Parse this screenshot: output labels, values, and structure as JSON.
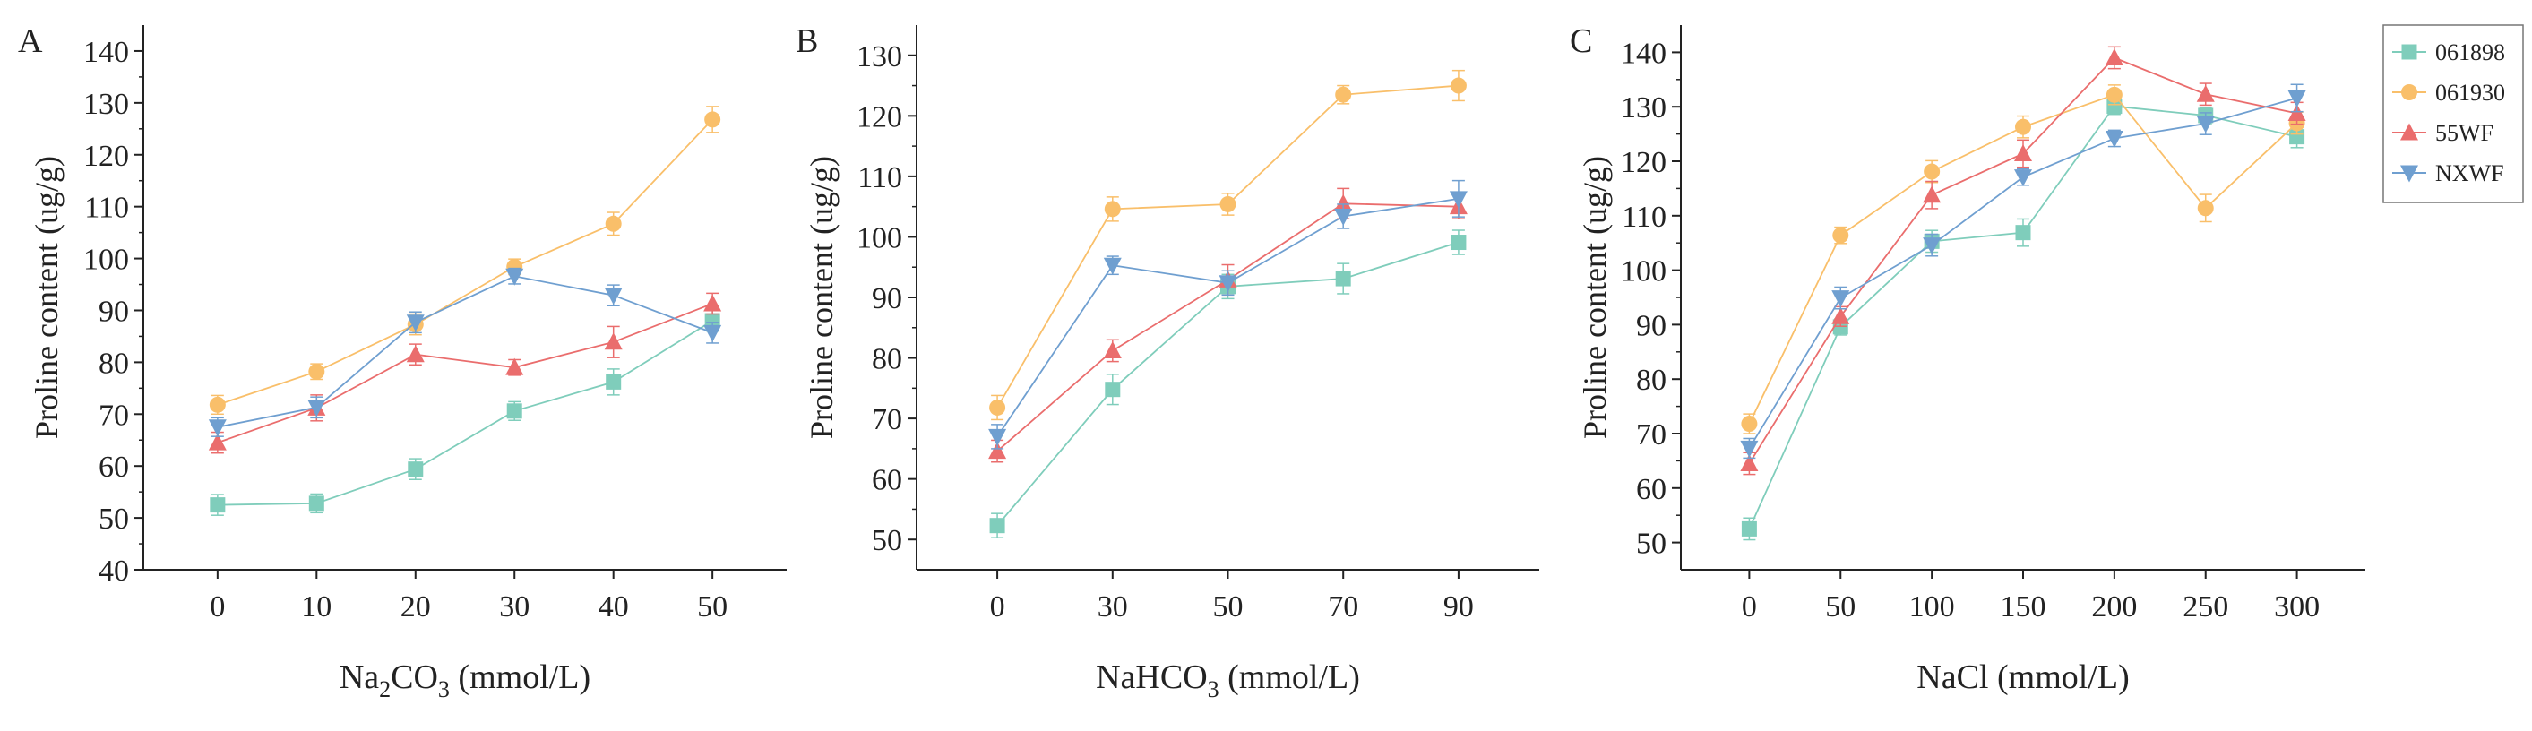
{
  "legend": {
    "placement": "top-right",
    "entries": [
      {
        "name": "061898",
        "color": "#7fcdbb",
        "marker": "square"
      },
      {
        "name": "061930",
        "color": "#f9bf6a",
        "marker": "circle"
      },
      {
        "name": "55WF",
        "color": "#ea6d6d",
        "marker": "triangle-up"
      },
      {
        "name": "NXWF",
        "color": "#6f9fd0",
        "marker": "triangle-down"
      }
    ]
  },
  "chart_data": [
    {
      "type": "line",
      "panel_label": "A",
      "xlabel_main": "Na",
      "xlabel_sub1": "2",
      "xlabel_mid": "CO",
      "xlabel_sub2": "3",
      "xlabel_rest": " (mmol/L)",
      "ylabel": "Proline content (ug/g)",
      "x": [
        0,
        10,
        20,
        30,
        40,
        50
      ],
      "xticks": [
        "0",
        "10",
        "20",
        "30",
        "40",
        "50"
      ],
      "xlim": [
        -7.5,
        57.5
      ],
      "ylim": [
        40,
        145
      ],
      "yticks": [
        40,
        50,
        60,
        70,
        80,
        90,
        100,
        110,
        120,
        130,
        140
      ],
      "grid": false,
      "series": [
        {
          "name": "061898",
          "values": [
            52.5,
            52.8,
            59.4,
            70.6,
            76.2,
            88.0
          ],
          "errors": [
            2.0,
            1.8,
            2.0,
            1.8,
            2.5,
            2.0
          ]
        },
        {
          "name": "061930",
          "values": [
            71.8,
            78.2,
            87.3,
            98.4,
            106.7,
            126.8
          ],
          "errors": [
            1.8,
            1.5,
            2.0,
            1.5,
            2.2,
            2.5
          ]
        },
        {
          "name": "55WF",
          "values": [
            64.5,
            71.2,
            81.5,
            79.0,
            83.9,
            91.3
          ],
          "errors": [
            2.0,
            2.5,
            2.0,
            1.5,
            3.0,
            2.0
          ]
        },
        {
          "name": "NXWF",
          "values": [
            67.5,
            71.3,
            87.7,
            96.6,
            92.9,
            85.7
          ],
          "errors": [
            1.8,
            2.0,
            2.0,
            1.5,
            2.0,
            2.0
          ]
        }
      ]
    },
    {
      "type": "line",
      "panel_label": "B",
      "xlabel_main": "NaHCO",
      "xlabel_sub1": "3",
      "xlabel_mid": "",
      "xlabel_sub2": "",
      "xlabel_rest": " (mmol/L)",
      "ylabel": "Proline content (ug/g)",
      "x": [
        0,
        1,
        2,
        3,
        4
      ],
      "xticks": [
        "0",
        "30",
        "50",
        "70",
        "90"
      ],
      "xlim": [
        -0.7,
        4.7
      ],
      "ylim": [
        45,
        135
      ],
      "yticks": [
        50,
        60,
        70,
        80,
        90,
        100,
        110,
        120,
        130
      ],
      "grid": false,
      "series": [
        {
          "name": "061898",
          "values": [
            52.3,
            74.8,
            91.8,
            93.1,
            99.1
          ],
          "errors": [
            2.0,
            2.5,
            2.0,
            2.5,
            2.0
          ]
        },
        {
          "name": "061930",
          "values": [
            71.8,
            104.6,
            105.4,
            123.5,
            125.0
          ],
          "errors": [
            2.0,
            2.0,
            1.8,
            1.5,
            2.5
          ]
        },
        {
          "name": "55WF",
          "values": [
            64.6,
            81.2,
            92.9,
            105.5,
            105.0
          ],
          "errors": [
            1.8,
            1.8,
            2.5,
            2.5,
            2.0
          ]
        },
        {
          "name": "NXWF",
          "values": [
            67.0,
            95.3,
            92.4,
            103.4,
            106.3
          ],
          "errors": [
            2.0,
            1.5,
            2.0,
            2.0,
            3.0
          ]
        }
      ]
    },
    {
      "type": "line",
      "panel_label": "C",
      "xlabel_main": "NaCl (mmol/L)",
      "xlabel_sub1": "",
      "xlabel_mid": "",
      "xlabel_sub2": "",
      "xlabel_rest": "",
      "ylabel": "Proline content (ug/g)",
      "x": [
        0,
        50,
        100,
        150,
        200,
        250,
        300
      ],
      "xticks": [
        "0",
        "50",
        "100",
        "150",
        "200",
        "250",
        "300"
      ],
      "xlim": [
        -37.5,
        337.5
      ],
      "ylim": [
        45,
        145
      ],
      "yticks": [
        50,
        60,
        70,
        80,
        90,
        100,
        110,
        120,
        130,
        140
      ],
      "grid": false,
      "series": [
        {
          "name": "061898",
          "values": [
            52.5,
            89.6,
            105.3,
            106.9,
            130.1,
            128.4,
            124.5
          ],
          "errors": [
            2.0,
            1.5,
            2.0,
            2.5,
            1.5,
            1.5,
            2.0
          ]
        },
        {
          "name": "061930",
          "values": [
            71.8,
            106.4,
            118.1,
            126.3,
            132.2,
            111.4,
            127.0
          ],
          "errors": [
            1.8,
            1.5,
            2.0,
            2.0,
            1.8,
            2.5,
            2.0
          ]
        },
        {
          "name": "55WF",
          "values": [
            64.5,
            91.5,
            113.8,
            121.4,
            139.0,
            132.3,
            128.8
          ],
          "errors": [
            2.0,
            1.8,
            2.5,
            2.5,
            2.0,
            2.0,
            2.0
          ]
        },
        {
          "name": "NXWF",
          "values": [
            67.3,
            94.9,
            104.6,
            117.1,
            124.2,
            126.9,
            131.6
          ],
          "errors": [
            1.8,
            2.0,
            2.0,
            1.5,
            1.5,
            2.0,
            2.5
          ]
        }
      ]
    }
  ]
}
